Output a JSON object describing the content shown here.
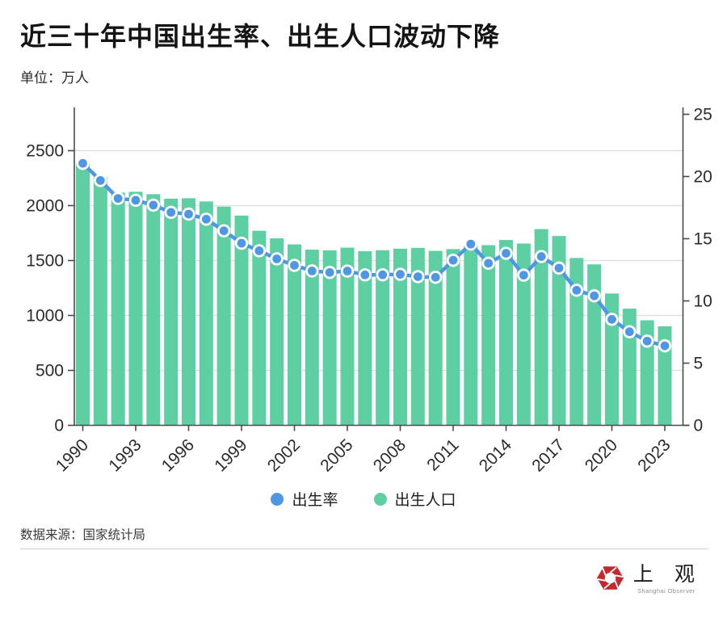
{
  "title": "近三十年中国出生率、出生人口波动下降",
  "unit_label": "单位：万人",
  "source": "数据来源：国家统计局",
  "logo": {
    "name_cn": "上 观",
    "name_en": "Shanghai Observer",
    "icon": "red-aperture-hexagon",
    "color": "#c4272e"
  },
  "colors": {
    "bar": "#5ecfa3",
    "line": "#4f97e4",
    "marker_ring": "#ffffff",
    "grid": "#dcdcdc",
    "axis": "#4a4a4a",
    "tick_text": "#2b2b2b"
  },
  "chart_data": {
    "type": "bar+line",
    "title": "近三十年中国出生率、出生人口波动下降",
    "unit": "万人",
    "x": [
      1990,
      1991,
      1992,
      1993,
      1994,
      1995,
      1996,
      1997,
      1998,
      1999,
      2000,
      2001,
      2002,
      2003,
      2004,
      2005,
      2006,
      2007,
      2008,
      2009,
      2010,
      2011,
      2012,
      2013,
      2014,
      2015,
      2016,
      2017,
      2018,
      2019,
      2020,
      2021,
      2022,
      2023
    ],
    "x_tick_labels": [
      "1990",
      "1993",
      "1996",
      "1999",
      "2002",
      "2005",
      "2008",
      "2011",
      "2014",
      "2017",
      "2020",
      "2023"
    ],
    "series": [
      {
        "name": "出生人口",
        "type": "bar",
        "axis": "left",
        "color": "#5ecfa3",
        "values": [
          2391,
          2258,
          2119,
          2126,
          2104,
          2063,
          2067,
          2038,
          1991,
          1909,
          1771,
          1702,
          1647,
          1599,
          1593,
          1617,
          1585,
          1594,
          1608,
          1615,
          1588,
          1604,
          1635,
          1640,
          1687,
          1655,
          1786,
          1723,
          1523,
          1465,
          1200,
          1062,
          956,
          902
        ]
      },
      {
        "name": "出生率",
        "type": "line",
        "axis": "right",
        "color": "#4f97e4",
        "marker": "circle",
        "values": [
          21.06,
          19.68,
          18.24,
          18.09,
          17.7,
          17.12,
          16.98,
          16.57,
          15.64,
          14.64,
          14.03,
          13.38,
          12.86,
          12.41,
          12.29,
          12.4,
          12.09,
          12.1,
          12.14,
          11.95,
          11.9,
          13.27,
          14.57,
          13.03,
          13.83,
          12.07,
          13.57,
          12.64,
          10.86,
          10.41,
          8.52,
          7.52,
          6.77,
          6.39
        ]
      }
    ],
    "left_axis": {
      "ticks": [
        0,
        500,
        1000,
        1500,
        2000,
        2500
      ],
      "visible_max": 2875
    },
    "right_axis": {
      "ticks": [
        0,
        5,
        10,
        15,
        20,
        25
      ],
      "visible_max": 25.4
    },
    "grid": "horizontal",
    "legend_position": "bottom-center"
  }
}
